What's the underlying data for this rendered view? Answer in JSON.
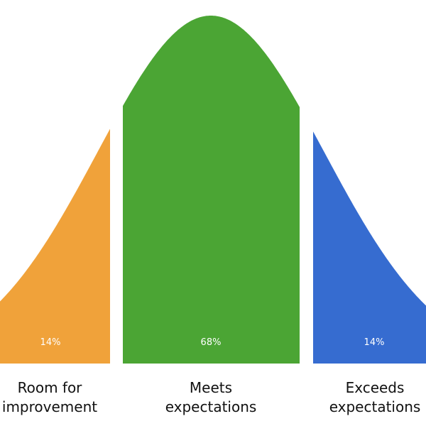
{
  "chart_data": {
    "type": "area",
    "segments": [
      {
        "label_lines": [
          "Room for",
          "improvement"
        ],
        "percent_label": "14%",
        "value": 14,
        "color": "#F0A23A"
      },
      {
        "label_lines": [
          "Meets",
          "expectations"
        ],
        "percent_label": "68%",
        "value": 68,
        "color": "#4BA534"
      },
      {
        "label_lines": [
          "Exceeds",
          "expectations"
        ],
        "percent_label": "14%",
        "value": 14,
        "color": "#366CD0"
      }
    ]
  }
}
